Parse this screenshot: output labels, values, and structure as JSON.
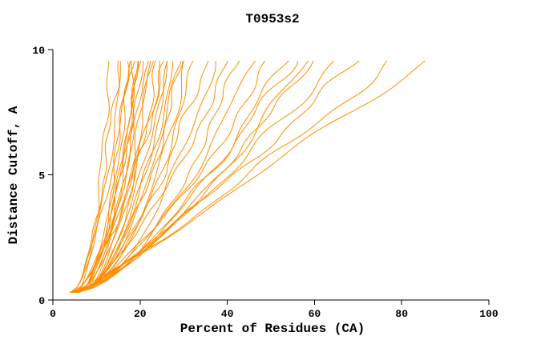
{
  "chart_data": {
    "type": "line",
    "title": "T0953s2",
    "xlabel": "Percent of Residues (CA)",
    "ylabel": "Distance Cutoff, A",
    "xlim": [
      0,
      100
    ],
    "ylim": [
      0,
      10
    ],
    "xticks": [
      0,
      20,
      40,
      60,
      80,
      100
    ],
    "yticks": [
      0,
      5,
      10
    ],
    "grid": false,
    "legend": "none",
    "line_color": "#ff8c00",
    "axis_color": "#000000",
    "y_start": 0.3,
    "y_end": 9.55,
    "series_note": "Each model-accuracy curve rises from ~4-6% of residues at 0.3 A cutoff to its end percentage x1 at ~9.55 A cutoff; q is curvature exponent, amp is wiggle amplitude in percent units.",
    "series": [
      {
        "x0": 5.0,
        "x1": 13,
        "q": 0.46,
        "amp": 0.55,
        "seed": 11
      },
      {
        "x0": 4.1,
        "x1": 15,
        "q": 0.52,
        "amp": 0.6,
        "seed": 12
      },
      {
        "x0": 4.5,
        "x1": 16,
        "q": 0.55,
        "amp": 0.55,
        "seed": 13
      },
      {
        "x0": 5.5,
        "x1": 17,
        "q": 0.44,
        "amp": 0.6,
        "seed": 14
      },
      {
        "x0": 4.2,
        "x1": 18,
        "q": 0.6,
        "amp": 0.65,
        "seed": 15
      },
      {
        "x0": 5.8,
        "x1": 18,
        "q": 0.5,
        "amp": 0.55,
        "seed": 16
      },
      {
        "x0": 4.8,
        "x1": 19,
        "q": 0.42,
        "amp": 0.7,
        "seed": 17
      },
      {
        "x0": 5.7,
        "x1": 19,
        "q": 0.4,
        "amp": 0.55,
        "seed": 18
      },
      {
        "x0": 5.2,
        "x1": 20,
        "q": 0.55,
        "amp": 0.6,
        "seed": 19
      },
      {
        "x0": 4.0,
        "x1": 20,
        "q": 0.48,
        "amp": 0.65,
        "seed": 20
      },
      {
        "x0": 6.0,
        "x1": 21,
        "q": 0.52,
        "amp": 0.6,
        "seed": 21
      },
      {
        "x0": 4.6,
        "x1": 22,
        "q": 0.58,
        "amp": 0.7,
        "seed": 22
      },
      {
        "x0": 5.4,
        "x1": 22,
        "q": 0.44,
        "amp": 0.55,
        "seed": 23
      },
      {
        "x0": 4.3,
        "x1": 23,
        "q": 0.5,
        "amp": 0.65,
        "seed": 24
      },
      {
        "x0": 5.9,
        "x1": 24,
        "q": 0.47,
        "amp": 0.6,
        "seed": 25
      },
      {
        "x0": 4.7,
        "x1": 25,
        "q": 0.55,
        "amp": 0.7,
        "seed": 26
      },
      {
        "x0": 5.1,
        "x1": 26,
        "q": 0.5,
        "amp": 0.6,
        "seed": 27
      },
      {
        "x0": 4.4,
        "x1": 26,
        "q": 0.62,
        "amp": 0.75,
        "seed": 28
      },
      {
        "x0": 4.4,
        "x1": 27,
        "q": 0.46,
        "amp": 0.6,
        "seed": 29
      },
      {
        "x0": 5.6,
        "x1": 28,
        "q": 0.52,
        "amp": 0.7,
        "seed": 30
      },
      {
        "x0": 4.9,
        "x1": 29,
        "q": 0.49,
        "amp": 0.6,
        "seed": 31
      },
      {
        "x0": 5.3,
        "x1": 30,
        "q": 0.55,
        "amp": 0.75,
        "seed": 32
      },
      {
        "x0": 4.5,
        "x1": 31,
        "q": 0.47,
        "amp": 0.65,
        "seed": 33
      },
      {
        "x0": 5.0,
        "x1": 33,
        "q": 0.55,
        "amp": 0.8,
        "seed": 34
      },
      {
        "x0": 5.7,
        "x1": 35,
        "q": 0.6,
        "amp": 0.85,
        "seed": 35
      },
      {
        "x0": 4.8,
        "x1": 37,
        "q": 0.52,
        "amp": 0.8,
        "seed": 36
      },
      {
        "x0": 5.2,
        "x1": 40,
        "q": 0.65,
        "amp": 0.9,
        "seed": 37
      },
      {
        "x0": 4.6,
        "x1": 43,
        "q": 0.58,
        "amp": 0.95,
        "seed": 38
      },
      {
        "x0": 5.5,
        "x1": 46,
        "q": 0.62,
        "amp": 1.0,
        "seed": 39
      },
      {
        "x0": 5.0,
        "x1": 50,
        "q": 0.7,
        "amp": 1.05,
        "seed": 40
      },
      {
        "x0": 4.9,
        "x1": 53,
        "q": 0.66,
        "amp": 1.0,
        "seed": 41
      },
      {
        "x0": 5.3,
        "x1": 55,
        "q": 0.72,
        "amp": 1.1,
        "seed": 42
      },
      {
        "x0": 4.7,
        "x1": 58,
        "q": 0.68,
        "amp": 1.05,
        "seed": 43
      },
      {
        "x0": 5.1,
        "x1": 60,
        "q": 0.75,
        "amp": 1.1,
        "seed": 44
      },
      {
        "x0": 5.4,
        "x1": 65,
        "q": 0.8,
        "amp": 1.2,
        "seed": 45
      },
      {
        "x0": 5.0,
        "x1": 70,
        "q": 0.85,
        "amp": 1.25,
        "seed": 46
      },
      {
        "x0": 5.6,
        "x1": 78,
        "q": 0.9,
        "amp": 1.35,
        "seed": 47
      },
      {
        "x0": 5.2,
        "x1": 85,
        "q": 0.95,
        "amp": 1.4,
        "seed": 48
      }
    ]
  }
}
